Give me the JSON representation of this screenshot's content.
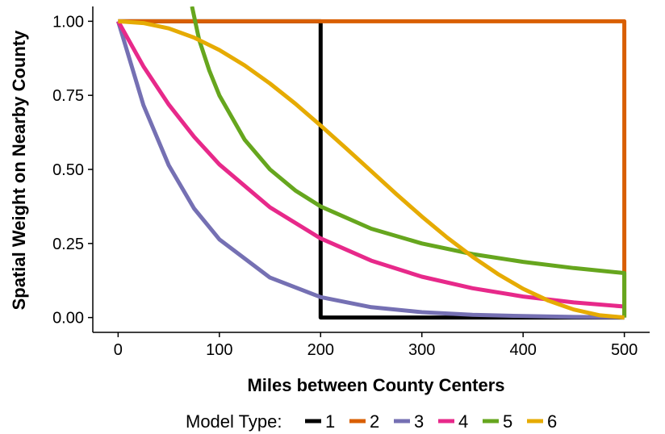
{
  "chart_data": {
    "type": "line",
    "xlabel": "Miles between County Centers",
    "ylabel": "Spatial Weight on Nearby County",
    "xlim": [
      -25,
      525
    ],
    "ylim": [
      -0.05,
      1.05
    ],
    "x_ticks": [
      0,
      100,
      200,
      300,
      400,
      500
    ],
    "y_ticks": [
      0.0,
      0.25,
      0.5,
      0.75,
      1.0
    ],
    "x_tick_labels": [
      "0",
      "100",
      "200",
      "300",
      "400",
      "500"
    ],
    "y_tick_labels": [
      "0.00",
      "0.25",
      "0.50",
      "0.75",
      "1.00"
    ],
    "grid": false,
    "legend": {
      "title": "Model Type:",
      "position": "bottom",
      "entries": [
        "1",
        "2",
        "3",
        "4",
        "5",
        "6"
      ]
    },
    "series": [
      {
        "name": "1",
        "color": "#000000",
        "x": [
          0,
          200,
          200,
          500
        ],
        "y": [
          1.0,
          1.0,
          0.0,
          0.0
        ]
      },
      {
        "name": "2",
        "color": "#d95f02",
        "x": [
          0,
          500,
          500
        ],
        "y": [
          1.0,
          1.0,
          0.0
        ]
      },
      {
        "name": "3",
        "color": "#7570b3",
        "x": [
          0,
          25,
          50,
          75,
          100,
          150,
          200,
          250,
          300,
          350,
          400,
          450,
          500
        ],
        "y": [
          1.0,
          0.717,
          0.514,
          0.368,
          0.264,
          0.135,
          0.069,
          0.035,
          0.018,
          0.009,
          0.005,
          0.002,
          0.001
        ]
      },
      {
        "name": "4",
        "color": "#e7298a",
        "x": [
          0,
          25,
          50,
          75,
          100,
          150,
          200,
          250,
          300,
          350,
          400,
          450,
          500
        ],
        "y": [
          1.0,
          0.848,
          0.719,
          0.61,
          0.517,
          0.372,
          0.267,
          0.192,
          0.138,
          0.099,
          0.071,
          0.051,
          0.037
        ]
      },
      {
        "name": "5",
        "color": "#66a61e",
        "x": [
          73,
          80,
          90,
          100,
          125,
          150,
          175,
          200,
          250,
          300,
          350,
          400,
          450,
          500,
          500
        ],
        "y": [
          1.05,
          0.938,
          0.834,
          0.75,
          0.6,
          0.5,
          0.429,
          0.375,
          0.3,
          0.25,
          0.214,
          0.188,
          0.167,
          0.15,
          0.0
        ]
      },
      {
        "name": "6",
        "color": "#e6ab02",
        "x": [
          0,
          25,
          50,
          75,
          100,
          125,
          150,
          175,
          200,
          225,
          250,
          275,
          300,
          325,
          350,
          375,
          400,
          425,
          450,
          475,
          500
        ],
        "y": [
          1.0,
          0.994,
          0.976,
          0.945,
          0.903,
          0.851,
          0.79,
          0.722,
          0.648,
          0.572,
          0.494,
          0.416,
          0.341,
          0.27,
          0.205,
          0.147,
          0.097,
          0.057,
          0.027,
          0.008,
          0.0
        ]
      }
    ]
  }
}
